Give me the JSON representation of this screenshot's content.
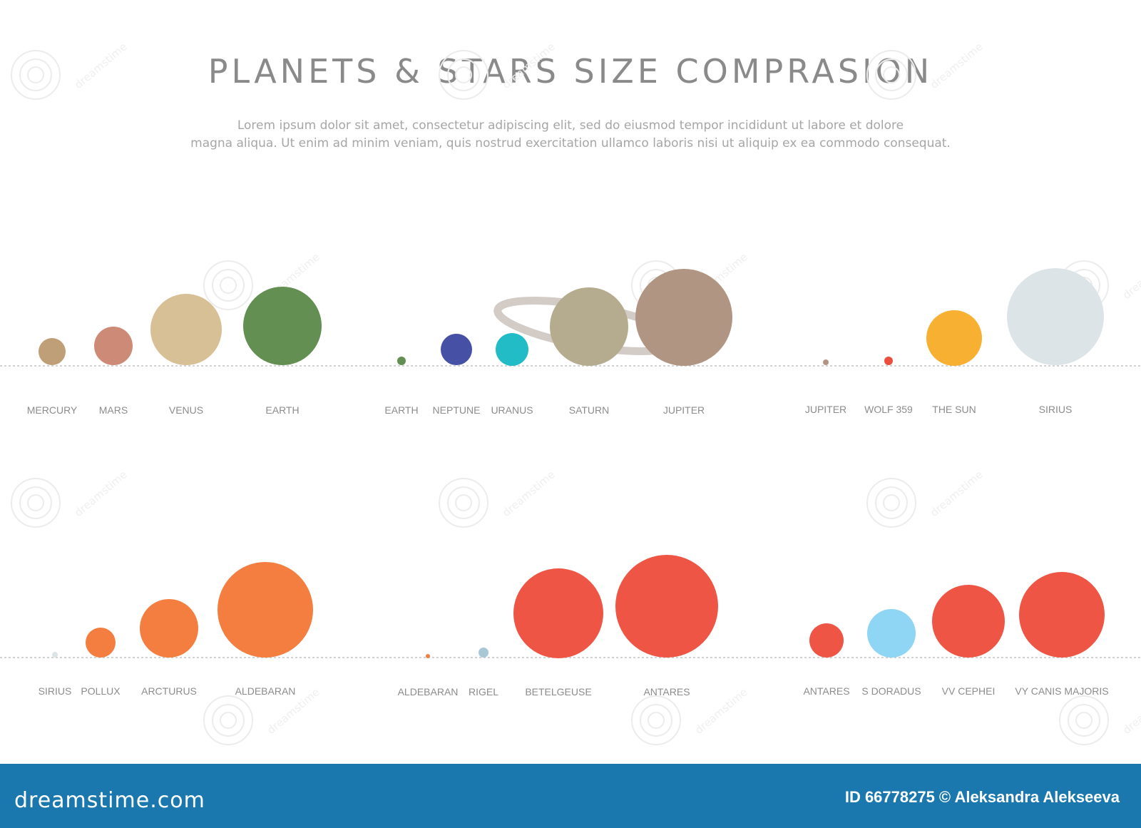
{
  "header": {
    "title": "PLANETS & STARS SIZE COMPRASION",
    "subtitle_line1": "Lorem ipsum dolor sit amet, consectetur adipiscing elit, sed do eiusmod tempor incididunt ut labore et dolore",
    "subtitle_line2": "magna aliqua. Ut enim ad minim veniam, quis nostrud exercitation ullamco laboris nisi ut aliquip ex ea commodo consequat."
  },
  "watermark": {
    "text": "dreamstime"
  },
  "colors": {
    "mercury": "#bf9f77",
    "mars": "#cd8a77",
    "venus": "#d7c096",
    "earth": "#648f52",
    "neptune": "#4650a4",
    "uranus": "#22bcc6",
    "saturn": "#b5ab8e",
    "saturn_ring": "#d2cbc6",
    "jupiter": "#b09583",
    "wolf359": "#ea4e3d",
    "sun": "#f7b032",
    "sirius": "#dce4e8",
    "pollux": "#f37e40",
    "arcturus": "#f37e40",
    "aldebaran": "#f37e40",
    "rigel": "#a9c8d6",
    "betelgeuse": "#ee5545",
    "antares": "#ee5545",
    "s_doradus": "#8fd5f4",
    "vy_cephei": "#ee5545",
    "vy_canis_majoris": "#ee5545",
    "footer": "#1a78ae"
  },
  "groups": [
    {
      "bodies": [
        {
          "label": "MERCURY",
          "color": "#bf9f77"
        },
        {
          "label": "MARS",
          "color": "#cd8a77"
        },
        {
          "label": "VENUS",
          "color": "#d7c096"
        },
        {
          "label": "EARTH",
          "color": "#648f52"
        }
      ]
    },
    {
      "bodies": [
        {
          "label": "EARTH",
          "color": "#648f52"
        },
        {
          "label": "NEPTUNE",
          "color": "#4650a4"
        },
        {
          "label": "URANUS",
          "color": "#22bcc6"
        },
        {
          "label": "SATURN",
          "color": "#b5ab8e"
        },
        {
          "label": "JUPITER",
          "color": "#b09583"
        }
      ]
    },
    {
      "bodies": [
        {
          "label": "JUPITER",
          "color": "#b09583"
        },
        {
          "label": "WOLF 359",
          "color": "#ea4e3d"
        },
        {
          "label": "THE SUN",
          "color": "#f7b032"
        },
        {
          "label": "SIRIUS",
          "color": "#dce4e8"
        }
      ]
    },
    {
      "bodies": [
        {
          "label": "SIRIUS",
          "color": "#dce4e8"
        },
        {
          "label": "POLLUX",
          "color": "#f37e40"
        },
        {
          "label": "ARCTURUS",
          "color": "#f37e40"
        },
        {
          "label": "ALDEBARAN",
          "color": "#f37e40"
        }
      ]
    },
    {
      "bodies": [
        {
          "label": "ALDEBARAN",
          "color": "#f37e40"
        },
        {
          "label": "RIGEL",
          "color": "#a9c8d6"
        },
        {
          "label": "BETELGEUSE",
          "color": "#ee5545"
        },
        {
          "label": "ANTARES",
          "color": "#ee5545"
        }
      ]
    },
    {
      "bodies": [
        {
          "label": "ANTARES",
          "color": "#ee5545"
        },
        {
          "label": "S DORADUS",
          "color": "#8fd5f4"
        },
        {
          "label": "VV CEPHEI",
          "color": "#ee5545"
        },
        {
          "label": "VY CANIS MAJORIS",
          "color": "#ee5545"
        }
      ]
    }
  ],
  "footer": {
    "brand": "dreamstime.com",
    "credit": "ID 66778275 © Aleksandra Alekseeva"
  }
}
